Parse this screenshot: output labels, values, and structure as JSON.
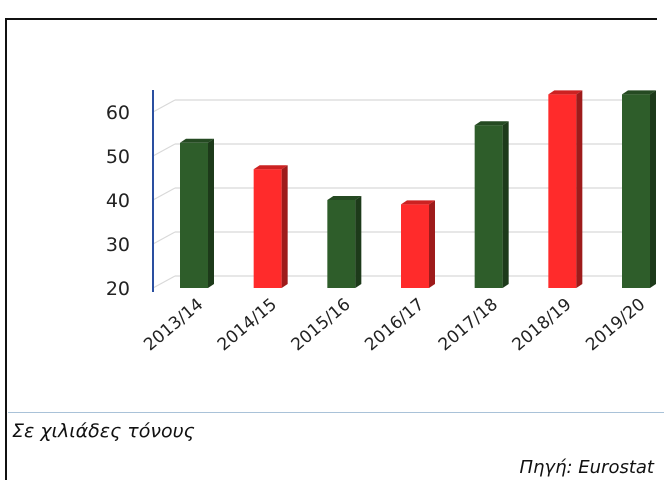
{
  "chart_data": {
    "type": "bar",
    "categories": [
      "2013/14",
      "2014/15",
      "2015/16",
      "2016/17",
      "2017/18",
      "2018/19",
      "2019/20"
    ],
    "values": [
      53,
      47,
      40,
      39,
      57,
      64,
      64
    ],
    "bar_colors": [
      "#2e5d2a",
      "#ff2b2b",
      "#2e5d2a",
      "#ff2b2b",
      "#2e5d2a",
      "#ff2b2b",
      "#2e5d2a"
    ],
    "ylim": [
      20,
      60
    ],
    "yticks": [
      20,
      30,
      40,
      50,
      60
    ],
    "grid": true,
    "three_d": true
  },
  "footer": {
    "unit_note": "Σε χιλιάδες τόνους",
    "source_note": "Πηγή: Eurostat"
  }
}
